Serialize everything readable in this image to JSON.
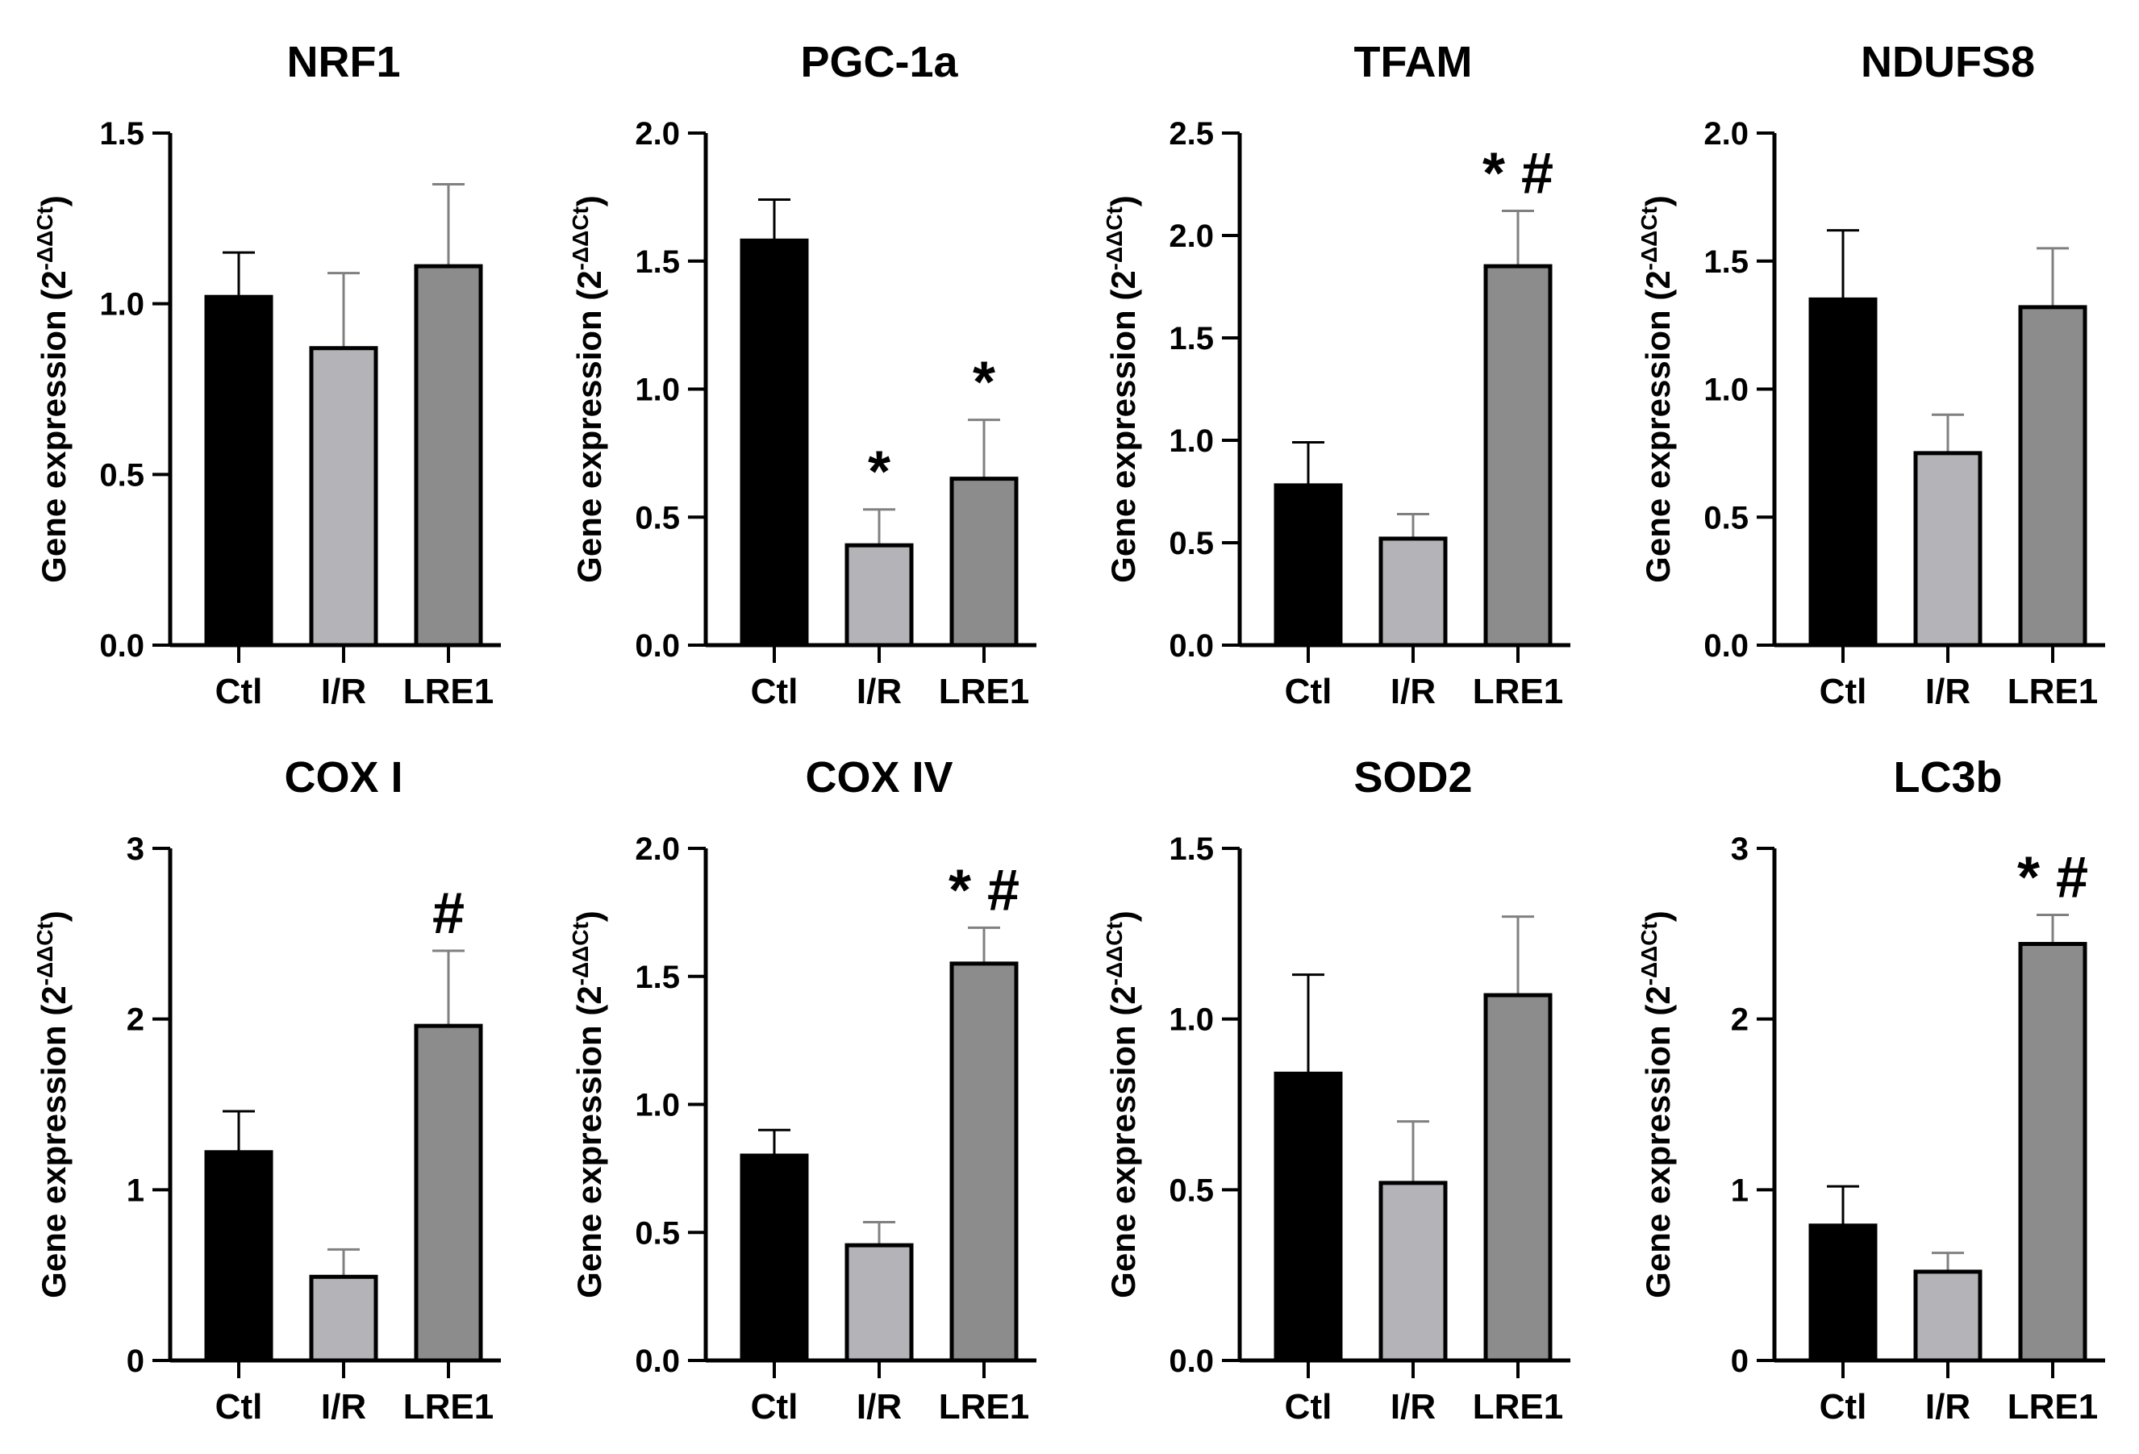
{
  "figure": {
    "ylabel_main": "Gene expression (2",
    "ylabel_sup": "-ΔΔCt",
    "ylabel_close": ")",
    "bar_colors": [
      "#000000",
      "#b3b3b8",
      "#8c8c8c"
    ]
  },
  "chart_data": [
    {
      "type": "bar",
      "title": "NRF1",
      "categories": [
        "Ctl",
        "I/R",
        "LRE1"
      ],
      "values": [
        1.02,
        0.87,
        1.11
      ],
      "errors": [
        0.13,
        0.22,
        0.24
      ],
      "ylim": [
        0,
        1.5
      ],
      "yticks": [
        "0.0",
        "0.5",
        "1.0",
        "1.5"
      ],
      "annotations": [
        "",
        "",
        ""
      ],
      "ylabel": "Gene expression (2-ΔΔCt)"
    },
    {
      "type": "bar",
      "title": "PGC-1a",
      "categories": [
        "Ctl",
        "I/R",
        "LRE1"
      ],
      "values": [
        1.58,
        0.39,
        0.65
      ],
      "errors": [
        0.16,
        0.14,
        0.23
      ],
      "ylim": [
        0,
        2.0
      ],
      "yticks": [
        "0.0",
        "0.5",
        "1.0",
        "1.5",
        "2.0"
      ],
      "annotations": [
        "",
        "*",
        "*"
      ],
      "ylabel": "Gene expression (2-ΔΔCt)"
    },
    {
      "type": "bar",
      "title": "TFAM",
      "categories": [
        "Ctl",
        "I/R",
        "LRE1"
      ],
      "values": [
        0.78,
        0.52,
        1.85
      ],
      "errors": [
        0.21,
        0.12,
        0.27
      ],
      "ylim": [
        0,
        2.5
      ],
      "yticks": [
        "0.0",
        "0.5",
        "1.0",
        "1.5",
        "2.0",
        "2.5"
      ],
      "annotations": [
        "",
        "",
        "* #"
      ],
      "ylabel": "Gene expression (2-ΔΔCt)"
    },
    {
      "type": "bar",
      "title": "NDUFS8",
      "categories": [
        "Ctl",
        "I/R",
        "LRE1"
      ],
      "values": [
        1.35,
        0.75,
        1.32
      ],
      "errors": [
        0.27,
        0.15,
        0.23
      ],
      "ylim": [
        0,
        2.0
      ],
      "yticks": [
        "0.0",
        "0.5",
        "1.0",
        "1.5",
        "2.0"
      ],
      "annotations": [
        "",
        "",
        ""
      ],
      "ylabel": "Gene expression (2-ΔΔCt)"
    },
    {
      "type": "bar",
      "title": "COX I",
      "categories": [
        "Ctl",
        "I/R",
        "LRE1"
      ],
      "values": [
        1.22,
        0.49,
        1.96
      ],
      "errors": [
        0.24,
        0.16,
        0.44
      ],
      "ylim": [
        0,
        3
      ],
      "yticks": [
        "0",
        "1",
        "2",
        "3"
      ],
      "annotations": [
        "",
        "",
        "#"
      ],
      "ylabel": "Gene expression (2-ΔΔCt)"
    },
    {
      "type": "bar",
      "title": "COX IV",
      "categories": [
        "Ctl",
        "I/R",
        "LRE1"
      ],
      "values": [
        0.8,
        0.45,
        1.55
      ],
      "errors": [
        0.1,
        0.09,
        0.14
      ],
      "ylim": [
        0,
        2.0
      ],
      "yticks": [
        "0.0",
        "0.5",
        "1.0",
        "1.5",
        "2.0"
      ],
      "annotations": [
        "",
        "",
        "* #"
      ],
      "ylabel": "Gene expression (2-ΔΔCt)"
    },
    {
      "type": "bar",
      "title": "SOD2",
      "categories": [
        "Ctl",
        "I/R",
        "LRE1"
      ],
      "values": [
        0.84,
        0.52,
        1.07
      ],
      "errors": [
        0.29,
        0.18,
        0.23
      ],
      "ylim": [
        0,
        1.5
      ],
      "yticks": [
        "0.0",
        "0.5",
        "1.0",
        "1.5"
      ],
      "annotations": [
        "",
        "",
        ""
      ],
      "ylabel": "Gene expression (2-ΔΔCt)"
    },
    {
      "type": "bar",
      "title": "LC3b",
      "categories": [
        "Ctl",
        "I/R",
        "LRE1"
      ],
      "values": [
        0.79,
        0.52,
        2.44
      ],
      "errors": [
        0.23,
        0.11,
        0.17
      ],
      "ylim": [
        0,
        3
      ],
      "yticks": [
        "0",
        "1",
        "2",
        "3"
      ],
      "annotations": [
        "",
        "",
        "* #"
      ],
      "ylabel": "Gene expression (2-ΔΔCt)"
    }
  ]
}
